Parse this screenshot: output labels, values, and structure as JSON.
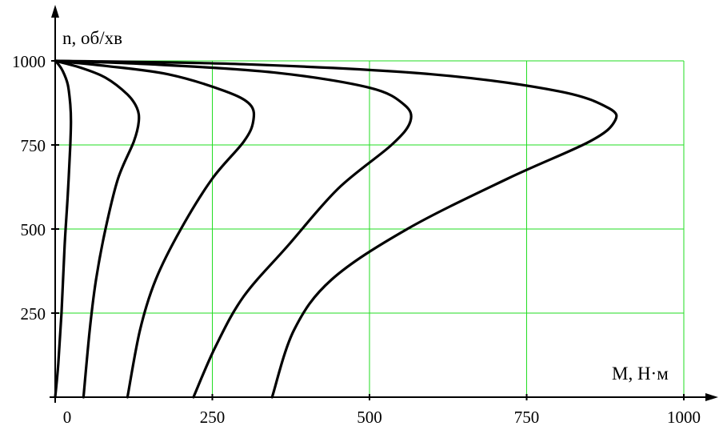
{
  "chart_data": {
    "type": "line",
    "xlabel": "M, Н·м",
    "ylabel": "n, об/хв",
    "xlim": [
      0,
      1000
    ],
    "ylim": [
      0,
      1000
    ],
    "x_ticks": [
      0,
      250,
      500,
      750,
      1000
    ],
    "y_ticks": [
      250,
      500,
      750,
      1000
    ],
    "grid": true,
    "grid_color": "#22dd22",
    "line_color": "#000000",
    "series": [
      {
        "x": [
          0,
          5,
          12,
          20,
          24,
          25,
          24,
          20,
          15,
          10,
          5,
          0
        ],
        "y": [
          1000,
          990,
          970,
          930,
          870,
          820,
          750,
          600,
          450,
          250,
          100,
          0
        ]
      },
      {
        "x": [
          0,
          40,
          80,
          115,
          130,
          133,
          125,
          100,
          80,
          65,
          55,
          45
        ],
        "y": [
          1000,
          980,
          950,
          900,
          860,
          820,
          760,
          650,
          500,
          350,
          200,
          0
        ]
      },
      {
        "x": [
          0,
          80,
          180,
          270,
          310,
          315,
          300,
          250,
          200,
          160,
          135,
          115
        ],
        "y": [
          1000,
          985,
          960,
          910,
          870,
          820,
          760,
          650,
          500,
          350,
          200,
          0
        ]
      },
      {
        "x": [
          0,
          150,
          350,
          500,
          555,
          565,
          535,
          450,
          370,
          300,
          255,
          220
        ],
        "y": [
          1000,
          990,
          965,
          920,
          870,
          820,
          750,
          620,
          450,
          300,
          150,
          0
        ]
      },
      {
        "x": [
          0,
          300,
          600,
          800,
          880,
          890,
          850,
          720,
          560,
          440,
          380,
          345
        ],
        "y": [
          1000,
          990,
          960,
          910,
          860,
          820,
          760,
          650,
          500,
          350,
          200,
          0
        ]
      }
    ]
  }
}
